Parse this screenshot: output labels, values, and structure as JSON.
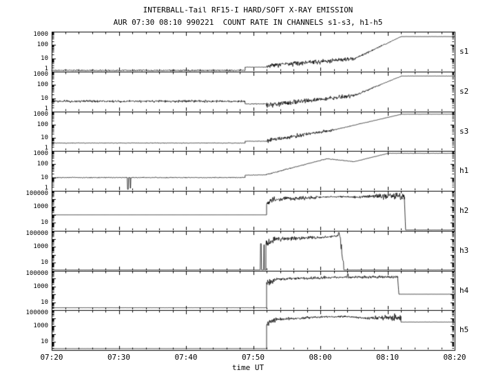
{
  "page": {
    "background": "#ffffff",
    "foreground": "#000000"
  },
  "chart_data": {
    "type": "line",
    "title": "INTERBALL-Tail RF15-I HARD/SOFT X-RAY EMISSION",
    "subtitle": "AUR 07:30 08:10 990221  COUNT RATE IN CHANNELS s1-s3, h1-h5",
    "xlabel": "time UT",
    "y_scale": "log",
    "line_color": "#000000",
    "x_axis": {
      "unit": "minutes after 07:20 UT",
      "min": 0,
      "max": 60,
      "major_step": 10,
      "minor_step": 2,
      "ticks": [
        {
          "t": 0,
          "label": "07:20"
        },
        {
          "t": 10,
          "label": "07:30"
        },
        {
          "t": 20,
          "label": "07:40"
        },
        {
          "t": 30,
          "label": "07:50"
        },
        {
          "t": 40,
          "label": "08:00"
        },
        {
          "t": 50,
          "label": "08:10"
        },
        {
          "t": 60,
          "label": "08:20"
        }
      ]
    },
    "panels": [
      {
        "name": "s1",
        "ylim": [
          1,
          1000
        ],
        "yticks": [
          {
            "v": 1000,
            "label": "1000"
          },
          {
            "v": 100,
            "label": "100"
          },
          {
            "v": 10,
            "label": "10"
          },
          {
            "v": 1,
            "label": "1"
          }
        ],
        "segments": [
          {
            "t0": 0,
            "t1": 28.8,
            "v0": 1.25,
            "v1": 1.25,
            "n0": 0.05,
            "n1": 0.05
          },
          {
            "t0": 28.8,
            "t1": 32,
            "v0": 2.2,
            "v1": 2.2,
            "n0": 0.02,
            "n1": 0.02
          },
          {
            "t0": 32,
            "t1": 45,
            "v0": 2.8,
            "v1": 9,
            "n0": 0.2,
            "n1": 0.14
          },
          {
            "t0": 45,
            "t1": 52,
            "v0": 9,
            "v1": 420,
            "n0": 0.08,
            "n1": 0.015
          },
          {
            "t0": 52,
            "t1": 60,
            "v0": 430,
            "v1": 430,
            "n0": 0.008,
            "n1": 0.008
          }
        ],
        "spikes": []
      },
      {
        "name": "s2",
        "ylim": [
          1,
          1000
        ],
        "yticks": [
          {
            "v": 1000,
            "label": "1000"
          },
          {
            "v": 100,
            "label": "100"
          },
          {
            "v": 10,
            "label": "10"
          },
          {
            "v": 1,
            "label": "1"
          }
        ],
        "segments": [
          {
            "t0": 0,
            "t1": 28.8,
            "v0": 6,
            "v1": 6,
            "n0": 0.08,
            "n1": 0.08
          },
          {
            "t0": 28.8,
            "t1": 32,
            "v0": 3.8,
            "v1": 3.8,
            "n0": 0.03,
            "n1": 0.03
          },
          {
            "t0": 32,
            "t1": 45,
            "v0": 3,
            "v1": 16,
            "n0": 0.2,
            "n1": 0.14
          },
          {
            "t0": 45,
            "t1": 52,
            "v0": 16,
            "v1": 450,
            "n0": 0.07,
            "n1": 0.015
          },
          {
            "t0": 52,
            "t1": 60,
            "v0": 470,
            "v1": 470,
            "n0": 0.008,
            "n1": 0.008
          }
        ],
        "spikes": []
      },
      {
        "name": "s3",
        "ylim": [
          1,
          1000
        ],
        "yticks": [
          {
            "v": 1000,
            "label": "1000"
          },
          {
            "v": 100,
            "label": "100"
          },
          {
            "v": 10,
            "label": "10"
          },
          {
            "v": 1,
            "label": "1"
          }
        ],
        "segments": [
          {
            "t0": 0,
            "t1": 28.8,
            "v0": 4,
            "v1": 4,
            "n0": 0.025,
            "n1": 0.025
          },
          {
            "t0": 28.8,
            "t1": 32,
            "v0": 5.5,
            "v1": 5.5,
            "n0": 0.02,
            "n1": 0.02
          },
          {
            "t0": 32,
            "t1": 42,
            "v0": 6,
            "v1": 40,
            "n0": 0.18,
            "n1": 0.08
          },
          {
            "t0": 42,
            "t1": 52,
            "v0": 40,
            "v1": 620,
            "n0": 0.03,
            "n1": 0.01
          },
          {
            "t0": 52,
            "t1": 60,
            "v0": 640,
            "v1": 640,
            "n0": 0.007,
            "n1": 0.007
          }
        ],
        "spikes": []
      },
      {
        "name": "h1",
        "ylim": [
          1,
          1000
        ],
        "yticks": [
          {
            "v": 1000,
            "label": "1000"
          },
          {
            "v": 100,
            "label": "100"
          },
          {
            "v": 10,
            "label": "10"
          },
          {
            "v": 1,
            "label": "1"
          }
        ],
        "segments": [
          {
            "t0": 0,
            "t1": 28.8,
            "v0": 10,
            "v1": 10,
            "n0": 0.03,
            "n1": 0.03
          },
          {
            "t0": 28.8,
            "t1": 32,
            "v0": 15,
            "v1": 16,
            "n0": 0.02,
            "n1": 0.02
          },
          {
            "t0": 32,
            "t1": 41,
            "v0": 17,
            "v1": 260,
            "n0": 0.035,
            "n1": 0.03
          },
          {
            "t0": 41,
            "t1": 45,
            "v0": 260,
            "v1": 155,
            "n0": 0.025,
            "n1": 0.02
          },
          {
            "t0": 45,
            "t1": 50,
            "v0": 155,
            "v1": 640,
            "n0": 0.015,
            "n1": 0.01
          },
          {
            "t0": 50,
            "t1": 60,
            "v0": 660,
            "v1": 660,
            "n0": 0.01,
            "n1": 0.01
          }
        ],
        "spikes": [
          {
            "t": 11.35,
            "v": 1.3,
            "w": 0.12
          },
          {
            "t": 11.75,
            "v": 1.6,
            "w": 0.1
          }
        ]
      },
      {
        "name": "h2",
        "ylim": [
          1,
          100000
        ],
        "yticks": [
          {
            "v": 100000,
            "label": "100000"
          },
          {
            "v": 1000,
            "label": "1000"
          },
          {
            "v": 10,
            "label": "10"
          }
        ],
        "segments": [
          {
            "t0": 0,
            "t1": 32,
            "v0": 100,
            "v1": 100,
            "n0": 0,
            "n1": 0
          },
          {
            "t0": 32,
            "t1": 33,
            "v0": 2500,
            "v1": 8000,
            "n0": 0.5,
            "n1": 0.35
          },
          {
            "t0": 33,
            "t1": 40,
            "v0": 8000,
            "v1": 16000,
            "n0": 0.28,
            "n1": 0.15
          },
          {
            "t0": 40,
            "t1": 43,
            "v0": 16000,
            "v1": 20000,
            "n0": 0.1,
            "n1": 0.1
          },
          {
            "t0": 43,
            "t1": 45,
            "v0": 20000,
            "v1": 16500,
            "n0": 0.1,
            "n1": 0.1
          },
          {
            "t0": 45,
            "t1": 48,
            "v0": 16500,
            "v1": 23000,
            "n0": 0.12,
            "n1": 0.18
          },
          {
            "t0": 48,
            "t1": 52.5,
            "v0": 23000,
            "v1": 21000,
            "n0": 0.3,
            "n1": 0.45
          },
          {
            "t0": 52.5,
            "t1": 52.7,
            "v0": 21000,
            "v1": 1.4,
            "n0": 0.05,
            "n1": 0.02
          },
          {
            "t0": 52.7,
            "t1": 60,
            "v0": 1.3,
            "v1": 1.3,
            "n0": 0.005,
            "n1": 0.005
          }
        ],
        "spikes": []
      },
      {
        "name": "h3",
        "ylim": [
          1,
          100000
        ],
        "yticks": [
          {
            "v": 100000,
            "label": "100000"
          },
          {
            "v": 1000,
            "label": "1000"
          },
          {
            "v": 10,
            "label": "10"
          }
        ],
        "segments": [
          {
            "t0": 0,
            "t1": 31.9,
            "v0": 1.3,
            "v1": 1.3,
            "n0": 0.004,
            "n1": 0.004
          },
          {
            "t0": 31.9,
            "t1": 33.5,
            "v0": 1800,
            "v1": 9000,
            "n0": 0.5,
            "n1": 0.35
          },
          {
            "t0": 33.5,
            "t1": 41,
            "v0": 9000,
            "v1": 17000,
            "n0": 0.25,
            "n1": 0.16
          },
          {
            "t0": 41,
            "t1": 42.9,
            "v0": 17000,
            "v1": 26000,
            "n0": 0.14,
            "n1": 0.1
          },
          {
            "t0": 42.9,
            "t1": 43.5,
            "v0": 26000,
            "v1": 2,
            "n0": 0.55,
            "n1": 0.35
          },
          {
            "t0": 43.5,
            "t1": 60,
            "v0": 1.3,
            "v1": 1.3,
            "n0": 0.004,
            "n1": 0.004
          }
        ],
        "spikes": [
          {
            "t": 31.15,
            "v": 2500,
            "w": 0.12
          },
          {
            "t": 31.6,
            "v": 1800,
            "w": 0.1
          },
          {
            "t": 42.75,
            "v": 62000,
            "w": 0.16
          }
        ]
      },
      {
        "name": "h4",
        "ylim": [
          1,
          100000
        ],
        "yticks": [
          {
            "v": 100000,
            "label": "100000"
          },
          {
            "v": 1000,
            "label": "1000"
          },
          {
            "v": 10,
            "label": "10"
          }
        ],
        "segments": [
          {
            "t0": 0,
            "t1": 32,
            "v0": 2,
            "v1": 2,
            "n0": 0.008,
            "n1": 0.008
          },
          {
            "t0": 32,
            "t1": 33.5,
            "v0": 2500,
            "v1": 9000,
            "n0": 0.45,
            "n1": 0.3
          },
          {
            "t0": 33.5,
            "t1": 43,
            "v0": 9000,
            "v1": 15000,
            "n0": 0.2,
            "n1": 0.14
          },
          {
            "t0": 43,
            "t1": 51.5,
            "v0": 15000,
            "v1": 17000,
            "n0": 0.14,
            "n1": 0.17
          },
          {
            "t0": 51.5,
            "t1": 51.7,
            "v0": 17000,
            "v1": 110,
            "n0": 0.04,
            "n1": 0.02
          },
          {
            "t0": 51.7,
            "t1": 60,
            "v0": 105,
            "v1": 105,
            "n0": 0.008,
            "n1": 0.008
          }
        ],
        "spikes": [
          {
            "t": 44.1,
            "v": 40000,
            "w": 0.2
          }
        ]
      },
      {
        "name": "h5",
        "ylim": [
          1,
          100000
        ],
        "yticks": [
          {
            "v": 100000,
            "label": "100000"
          },
          {
            "v": 1000,
            "label": "1000"
          },
          {
            "v": 10,
            "label": "10"
          }
        ],
        "segments": [
          {
            "t0": 0,
            "t1": 32,
            "v0": 1.5,
            "v1": 1.5,
            "n0": 0.004,
            "n1": 0.004
          },
          {
            "t0": 32,
            "t1": 33.5,
            "v0": 1800,
            "v1": 7000,
            "n0": 0.45,
            "n1": 0.3
          },
          {
            "t0": 33.5,
            "t1": 40,
            "v0": 7000,
            "v1": 14000,
            "n0": 0.18,
            "n1": 0.13
          },
          {
            "t0": 40,
            "t1": 44,
            "v0": 14000,
            "v1": 16000,
            "n0": 0.11,
            "n1": 0.11
          },
          {
            "t0": 44,
            "t1": 47,
            "v0": 16000,
            "v1": 9500,
            "n0": 0.11,
            "n1": 0.13
          },
          {
            "t0": 47,
            "t1": 50,
            "v0": 9500,
            "v1": 12500,
            "n0": 0.18,
            "n1": 0.3
          },
          {
            "t0": 50,
            "t1": 52,
            "v0": 12500,
            "v1": 10000,
            "n0": 0.38,
            "n1": 0.42
          },
          {
            "t0": 52,
            "t1": 60,
            "v0": 3200,
            "v1": 3200,
            "n0": 0.012,
            "n1": 0.012
          }
        ],
        "spikes": []
      }
    ]
  }
}
